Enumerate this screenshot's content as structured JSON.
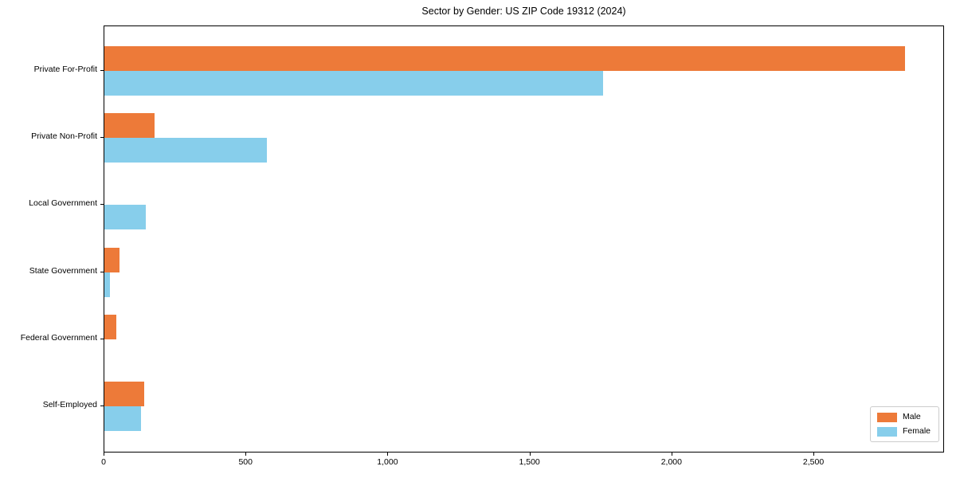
{
  "page": {
    "title": "Sector by Gender: US ZIP Code 19312 (2024)"
  },
  "chart_data": {
    "type": "bar",
    "orientation": "horizontal",
    "title": "Sector by Gender: US ZIP Code 19312 (2024)",
    "categories": [
      "Private For-Profit",
      "Private Non-Profit",
      "Local Government",
      "State Government",
      "Federal Government",
      "Self-Employed"
    ],
    "series": [
      {
        "name": "Male",
        "color": "#ED7A39",
        "values": [
          2820,
          178,
          0,
          53,
          41,
          139
        ]
      },
      {
        "name": "Female",
        "color": "#87CEEB",
        "values": [
          1756,
          573,
          146,
          20,
          0,
          128
        ]
      }
    ],
    "xlabel": "",
    "ylabel": "",
    "xlim": [
      0,
      2960
    ],
    "xticks": {
      "values": [
        0,
        500,
        1000,
        1500,
        2000,
        2500
      ],
      "labels": [
        "0",
        "500",
        "1,000",
        "1,500",
        "2,000",
        "2,500"
      ]
    },
    "grid": false,
    "legend": {
      "position": "lower-right",
      "entries": [
        "Male",
        "Female"
      ]
    },
    "background": "#ffffff",
    "spine_color": "#000000"
  }
}
